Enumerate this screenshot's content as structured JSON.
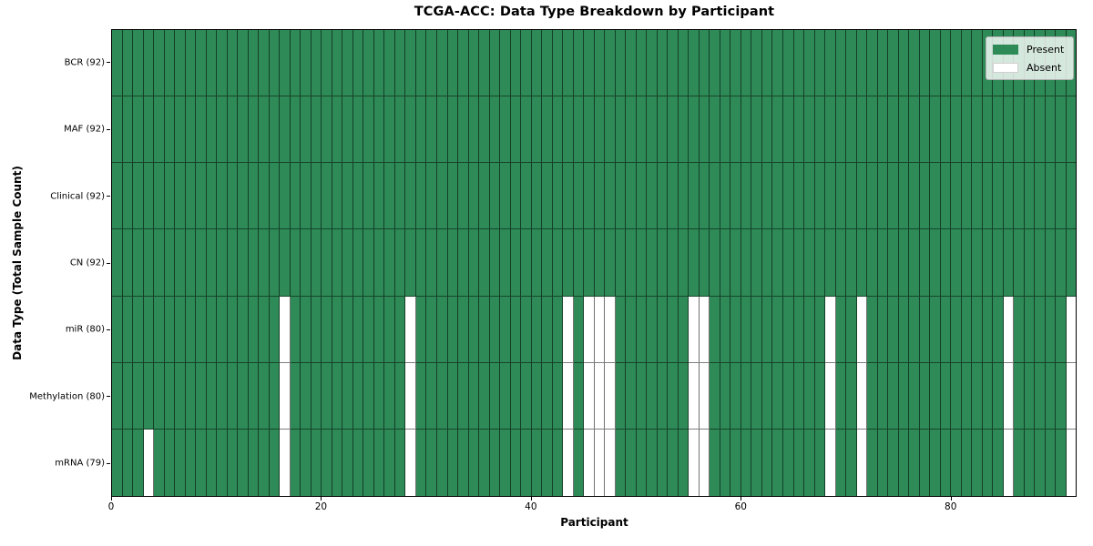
{
  "chart_data": {
    "type": "heatmap",
    "title": "TCGA-ACC: Data Type Breakdown by Participant",
    "xlabel": "Participant",
    "ylabel": "Data Type (Total Sample Count)",
    "n_participants": 92,
    "x_range": [
      0,
      92
    ],
    "x_ticks": [
      0,
      20,
      40,
      60,
      80
    ],
    "grid": true,
    "legend_position": "upper right",
    "colors": {
      "present": "#2e8b57",
      "absent": "#ffffff",
      "gridline": "rgba(0,0,0,0.55)"
    },
    "legend": [
      {
        "label": "Present",
        "color": "#2e8b57"
      },
      {
        "label": "Absent",
        "color": "#ffffff"
      }
    ],
    "rows": [
      {
        "label": "BCR (92)",
        "present_count": 92,
        "absent_participants": []
      },
      {
        "label": "MAF (92)",
        "present_count": 92,
        "absent_participants": []
      },
      {
        "label": "Clinical (92)",
        "present_count": 92,
        "absent_participants": []
      },
      {
        "label": "CN (92)",
        "present_count": 92,
        "absent_participants": []
      },
      {
        "label": "miR (80)",
        "present_count": 80,
        "absent_participants": [
          16,
          28,
          43,
          45,
          46,
          47,
          55,
          56,
          68,
          71,
          85,
          91
        ]
      },
      {
        "label": "Methylation (80)",
        "present_count": 80,
        "absent_participants": [
          16,
          28,
          43,
          45,
          46,
          47,
          55,
          56,
          68,
          71,
          85,
          91
        ]
      },
      {
        "label": "mRNA (79)",
        "present_count": 79,
        "absent_participants": [
          3,
          16,
          28,
          43,
          45,
          46,
          47,
          55,
          56,
          68,
          71,
          85,
          91
        ]
      }
    ]
  }
}
